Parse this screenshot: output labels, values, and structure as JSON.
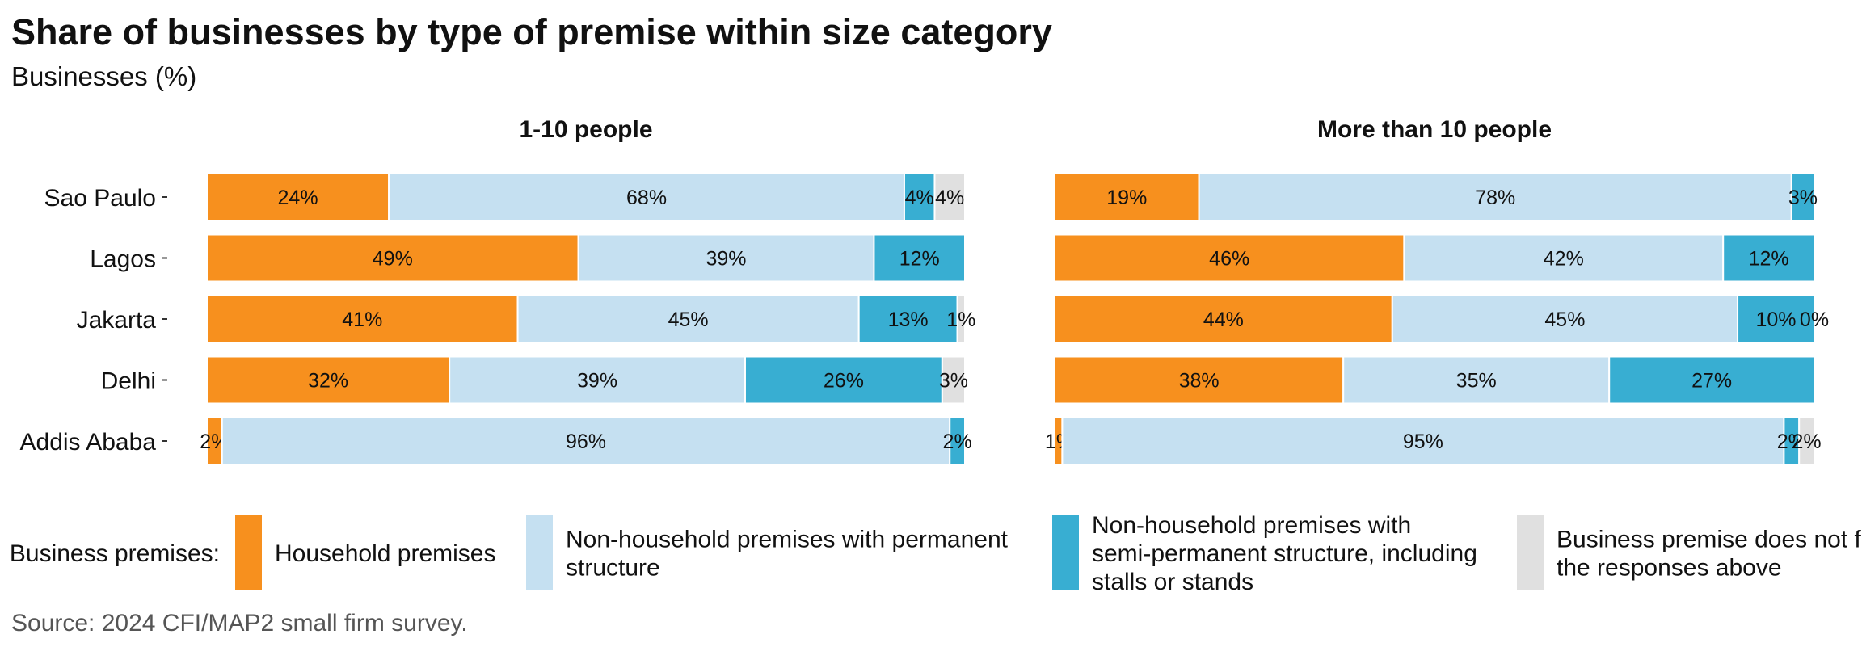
{
  "chart_data": {
    "type": "bar",
    "orientation": "horizontal",
    "stacked": true,
    "title": "Share of businesses by type of premise within size category",
    "subtitle": "Businesses (%)",
    "source": "Source: 2024 CFI/MAP2 small firm survey.",
    "categories": [
      "Sao Paulo",
      "Lagos",
      "Jakarta",
      "Delhi",
      "Addis Ababa"
    ],
    "legend": {
      "title": "Business premises:",
      "position": "bottom",
      "entries": [
        {
          "label": "Household premises",
          "color": "#F7901E"
        },
        {
          "label": "Non-household premises with permanent structure",
          "color": "#C5E0F1"
        },
        {
          "label": "Non-household premises with semi-permanent structure, including stalls or stands",
          "color": "#38AED2"
        },
        {
          "label": "Business premise does not fit the responses above",
          "color": "#E0E0E0"
        }
      ]
    },
    "panels": [
      {
        "title": "1-10 people",
        "series": [
          {
            "name": "Household premises",
            "values": [
              24,
              49,
              41,
              32,
              2
            ]
          },
          {
            "name": "Non-household premises with permanent structure",
            "values": [
              68,
              39,
              45,
              39,
              96
            ]
          },
          {
            "name": "Non-household premises with semi-permanent structure, including stalls or stands",
            "values": [
              4,
              12,
              13,
              26,
              2
            ]
          },
          {
            "name": "Business premise does not fit the responses above",
            "values": [
              4,
              0,
              1,
              3,
              0
            ]
          }
        ],
        "labels": [
          [
            "24%",
            "68%",
            "4%",
            "4%"
          ],
          [
            "49%",
            "39%",
            "12%",
            ""
          ],
          [
            "41%",
            "45%",
            "13%",
            "1%"
          ],
          [
            "32%",
            "39%",
            "26%",
            "3%"
          ],
          [
            "2%",
            "96%",
            "2%",
            ""
          ]
        ]
      },
      {
        "title": "More than 10 people",
        "series": [
          {
            "name": "Household premises",
            "values": [
              19,
              46,
              44,
              38,
              1
            ]
          },
          {
            "name": "Non-household premises with permanent structure",
            "values": [
              78,
              42,
              45,
              35,
              95
            ]
          },
          {
            "name": "Non-household premises with semi-permanent structure, including stalls or stands",
            "values": [
              3,
              12,
              10,
              27,
              2
            ]
          },
          {
            "name": "Business premise does not fit the responses above",
            "values": [
              0,
              0,
              0,
              0,
              2
            ]
          }
        ],
        "labels": [
          [
            "19%",
            "78%",
            "3%",
            ""
          ],
          [
            "46%",
            "42%",
            "12%",
            ""
          ],
          [
            "44%",
            "45%",
            "10%",
            "0%"
          ],
          [
            "38%",
            "35%",
            "27%",
            ""
          ],
          [
            "1%",
            "95%",
            "2%",
            "2%"
          ]
        ]
      }
    ],
    "xlim": [
      0,
      100
    ],
    "grid": false
  }
}
